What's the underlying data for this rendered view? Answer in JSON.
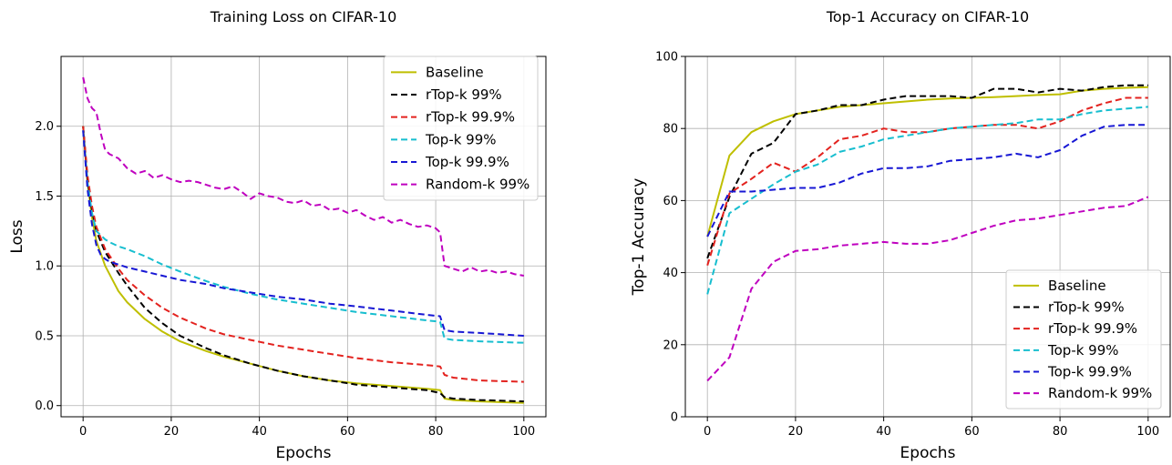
{
  "chart_data": [
    {
      "type": "line",
      "title": "Training Loss on CIFAR-10",
      "xlabel": "Epochs",
      "ylabel": "Loss",
      "xlim": [
        -5,
        105
      ],
      "ylim": [
        -0.08,
        2.5
      ],
      "xticks": [
        0,
        20,
        40,
        60,
        80,
        100
      ],
      "yticks": [
        0.0,
        0.5,
        1.0,
        1.5,
        2.0
      ],
      "xtick_labels": [
        "0",
        "20",
        "40",
        "60",
        "80",
        "100"
      ],
      "ytick_labels": [
        "0.0",
        "0.5",
        "1.0",
        "1.5",
        "2.0"
      ],
      "grid": true,
      "legend": "top-right",
      "series": [
        {
          "name": "Baseline",
          "color": "#bfbf00",
          "style": "solid",
          "x": [
            0,
            1,
            2,
            3,
            5,
            8,
            10,
            14,
            18,
            22,
            28,
            32,
            38,
            44,
            50,
            56,
            62,
            70,
            78,
            81,
            82,
            84,
            90,
            100
          ],
          "y": [
            2.0,
            1.6,
            1.35,
            1.18,
            1.0,
            0.82,
            0.74,
            0.62,
            0.53,
            0.46,
            0.39,
            0.35,
            0.3,
            0.25,
            0.21,
            0.18,
            0.16,
            0.14,
            0.12,
            0.11,
            0.05,
            0.04,
            0.03,
            0.02
          ]
        },
        {
          "name": "rTop-k 99%",
          "color": "#000000",
          "style": "dashed",
          "x": [
            0,
            1,
            2,
            3,
            5,
            8,
            10,
            14,
            18,
            22,
            28,
            32,
            38,
            44,
            50,
            56,
            62,
            70,
            78,
            81,
            82,
            84,
            90,
            100
          ],
          "y": [
            2.0,
            1.62,
            1.4,
            1.25,
            1.1,
            0.95,
            0.86,
            0.7,
            0.59,
            0.5,
            0.41,
            0.36,
            0.3,
            0.25,
            0.21,
            0.18,
            0.15,
            0.13,
            0.11,
            0.09,
            0.06,
            0.05,
            0.04,
            0.03
          ]
        },
        {
          "name": "rTop-k 99.9%",
          "color": "#e3221e",
          "style": "dashed",
          "x": [
            0,
            1,
            2,
            3,
            5,
            8,
            10,
            14,
            18,
            22,
            28,
            32,
            38,
            44,
            50,
            56,
            62,
            70,
            78,
            81,
            82,
            84,
            90,
            100
          ],
          "y": [
            2.0,
            1.65,
            1.43,
            1.28,
            1.12,
            0.98,
            0.9,
            0.79,
            0.7,
            0.63,
            0.55,
            0.51,
            0.47,
            0.43,
            0.4,
            0.37,
            0.34,
            0.31,
            0.29,
            0.28,
            0.22,
            0.2,
            0.18,
            0.17
          ]
        },
        {
          "name": "Top-k 99%",
          "color": "#17becf",
          "style": "dashed",
          "x": [
            0,
            1,
            2,
            3,
            5,
            6,
            8,
            10,
            14,
            18,
            22,
            28,
            32,
            38,
            44,
            50,
            56,
            62,
            70,
            78,
            81,
            82,
            84,
            90,
            100
          ],
          "y": [
            1.97,
            1.6,
            1.38,
            1.25,
            1.19,
            1.17,
            1.14,
            1.12,
            1.07,
            1.01,
            0.96,
            0.89,
            0.85,
            0.8,
            0.76,
            0.73,
            0.7,
            0.67,
            0.64,
            0.61,
            0.6,
            0.48,
            0.47,
            0.46,
            0.45
          ]
        },
        {
          "name": "Top-k 99.9%",
          "color": "#1717d4",
          "style": "dashed",
          "x": [
            0,
            1,
            2,
            3,
            4,
            5,
            6,
            8,
            10,
            14,
            18,
            22,
            28,
            32,
            38,
            44,
            50,
            56,
            62,
            70,
            78,
            81,
            82,
            84,
            90,
            100
          ],
          "y": [
            1.97,
            1.55,
            1.3,
            1.15,
            1.08,
            1.05,
            1.03,
            1.01,
            0.99,
            0.96,
            0.93,
            0.9,
            0.87,
            0.84,
            0.81,
            0.78,
            0.76,
            0.73,
            0.71,
            0.68,
            0.65,
            0.64,
            0.54,
            0.53,
            0.52,
            0.5
          ]
        },
        {
          "name": "Random-k 99%",
          "color": "#bf00bf",
          "style": "dashed",
          "x": [
            0,
            1,
            2,
            3,
            4,
            5,
            6,
            8,
            10,
            12,
            14,
            16,
            18,
            20,
            22,
            24,
            26,
            28,
            30,
            32,
            34,
            36,
            38,
            40,
            42,
            44,
            46,
            48,
            50,
            52,
            54,
            56,
            58,
            60,
            62,
            64,
            66,
            68,
            70,
            72,
            74,
            76,
            78,
            80,
            81,
            82,
            84,
            86,
            88,
            90,
            92,
            94,
            96,
            98,
            100
          ],
          "y": [
            2.35,
            2.2,
            2.13,
            2.1,
            1.95,
            1.83,
            1.8,
            1.77,
            1.7,
            1.66,
            1.68,
            1.63,
            1.65,
            1.62,
            1.6,
            1.61,
            1.6,
            1.58,
            1.56,
            1.55,
            1.57,
            1.53,
            1.48,
            1.52,
            1.5,
            1.49,
            1.46,
            1.45,
            1.47,
            1.43,
            1.44,
            1.4,
            1.41,
            1.38,
            1.4,
            1.36,
            1.33,
            1.35,
            1.31,
            1.33,
            1.3,
            1.28,
            1.29,
            1.27,
            1.24,
            1.0,
            0.98,
            0.96,
            0.99,
            0.96,
            0.97,
            0.95,
            0.96,
            0.94,
            0.93
          ]
        }
      ]
    },
    {
      "type": "line",
      "title": "Top-1 Accuracy on CIFAR-10",
      "xlabel": "Epochs",
      "ylabel": "Top-1 Accuracy",
      "xlim": [
        -5,
        105
      ],
      "ylim": [
        0,
        100
      ],
      "xticks": [
        0,
        20,
        40,
        60,
        80,
        100
      ],
      "yticks": [
        0,
        20,
        40,
        60,
        80,
        100
      ],
      "xtick_labels": [
        "0",
        "20",
        "40",
        "60",
        "80",
        "100"
      ],
      "ytick_labels": [
        "0",
        "20",
        "40",
        "60",
        "80",
        "100"
      ],
      "grid": true,
      "legend": "bottom-right",
      "series": [
        {
          "name": "Baseline",
          "color": "#bfbf00",
          "style": "solid",
          "x": [
            0,
            5,
            10,
            15,
            20,
            25,
            30,
            35,
            40,
            45,
            50,
            55,
            60,
            65,
            70,
            75,
            80,
            85,
            90,
            95,
            100
          ],
          "y": [
            50,
            72.5,
            79,
            82,
            84,
            85,
            86,
            86.5,
            87,
            87.5,
            88,
            88.3,
            88.5,
            88.7,
            89,
            89.3,
            89.5,
            90.5,
            91,
            91.3,
            91.5
          ]
        },
        {
          "name": "rTop-k 99%",
          "color": "#000000",
          "style": "dashed",
          "x": [
            0,
            5,
            10,
            15,
            20,
            25,
            30,
            35,
            40,
            45,
            50,
            55,
            60,
            65,
            70,
            75,
            80,
            85,
            90,
            95,
            100
          ],
          "y": [
            44,
            61,
            73,
            76,
            84,
            85,
            86.5,
            86.5,
            88,
            89,
            89,
            89,
            88.5,
            91,
            91,
            90,
            91,
            90.5,
            91.5,
            92,
            92
          ]
        },
        {
          "name": "rTop-k 99.9%",
          "color": "#e3221e",
          "style": "dashed",
          "x": [
            0,
            5,
            10,
            15,
            20,
            25,
            30,
            35,
            40,
            45,
            50,
            55,
            60,
            65,
            70,
            75,
            80,
            85,
            90,
            95,
            100
          ],
          "y": [
            42,
            62,
            66,
            70.5,
            68,
            72,
            77,
            78,
            80,
            79,
            79,
            80,
            80.5,
            81,
            81,
            80,
            82,
            85,
            87,
            88.5,
            88.5
          ]
        },
        {
          "name": "Top-k 99%",
          "color": "#17becf",
          "style": "dashed",
          "x": [
            0,
            5,
            10,
            15,
            20,
            25,
            30,
            35,
            40,
            45,
            50,
            55,
            60,
            65,
            70,
            75,
            80,
            85,
            90,
            95,
            100
          ],
          "y": [
            34,
            56.5,
            60.5,
            64.5,
            68,
            70,
            73.5,
            75,
            77,
            78,
            79,
            80,
            80.5,
            81,
            81.5,
            82.5,
            82.5,
            84,
            85,
            85.5,
            86
          ]
        },
        {
          "name": "Top-k 99.9%",
          "color": "#1717d4",
          "style": "dashed",
          "x": [
            0,
            5,
            10,
            15,
            20,
            25,
            30,
            35,
            40,
            45,
            50,
            55,
            60,
            65,
            70,
            75,
            80,
            85,
            90,
            95,
            100
          ],
          "y": [
            50,
            62.5,
            62.5,
            63,
            63.5,
            63.5,
            65,
            67.5,
            69,
            69,
            69.5,
            71,
            71.5,
            72,
            73,
            72,
            74,
            78,
            80.5,
            81,
            81
          ]
        },
        {
          "name": "Random-k 99%",
          "color": "#bf00bf",
          "style": "dashed",
          "x": [
            0,
            5,
            10,
            15,
            20,
            25,
            30,
            35,
            40,
            45,
            50,
            55,
            60,
            65,
            70,
            75,
            80,
            85,
            90,
            95,
            100
          ],
          "y": [
            10,
            16.5,
            35.5,
            43,
            46,
            46.5,
            47.5,
            48,
            48.5,
            48,
            48,
            49,
            51,
            53,
            54.5,
            55,
            56,
            57,
            58,
            58.5,
            61
          ]
        }
      ]
    }
  ]
}
